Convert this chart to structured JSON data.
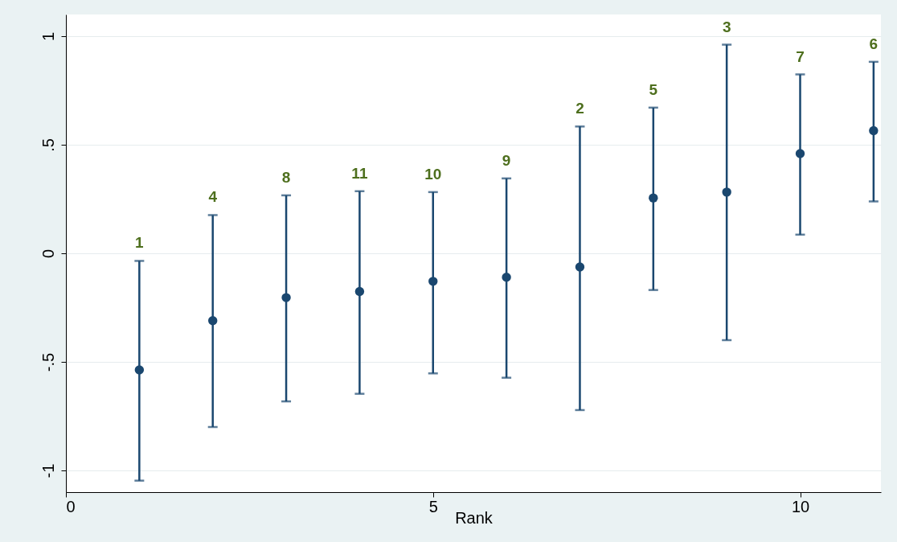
{
  "chart_data": {
    "type": "scatter",
    "xlabel": "Rank",
    "x": [
      1,
      2,
      3,
      4,
      5,
      6,
      7,
      8,
      9,
      10,
      11
    ],
    "series": [
      {
        "color": "#1a476f",
        "values": [
          -0.537,
          -0.31,
          -0.204,
          -0.176,
          -0.129,
          -0.11,
          -0.063,
          0.255,
          0.282,
          0.459,
          0.565
        ],
        "errors": [
          [
            -1.047,
            -0.035
          ],
          [
            -0.8,
            0.176
          ],
          [
            -0.682,
            0.267
          ],
          [
            -0.647,
            0.286
          ],
          [
            -0.553,
            0.282
          ],
          [
            -0.573,
            0.345
          ],
          [
            -0.722,
            0.584
          ],
          [
            -0.169,
            0.671
          ],
          [
            -0.4,
            0.961
          ],
          [
            0.086,
            0.824
          ],
          [
            0.239,
            0.882
          ]
        ]
      }
    ],
    "annotations": [
      {
        "text": "1",
        "x": 1,
        "y": -0.035
      },
      {
        "text": "4",
        "x": 2,
        "y": 0.176
      },
      {
        "text": "8",
        "x": 3,
        "y": 0.267
      },
      {
        "text": "11",
        "x": 4,
        "y": 0.286
      },
      {
        "text": "10",
        "x": 5,
        "y": 0.282
      },
      {
        "text": "9",
        "x": 6,
        "y": 0.345
      },
      {
        "text": "2",
        "x": 7,
        "y": 0.584
      },
      {
        "text": "5",
        "x": 8,
        "y": 0.671
      },
      {
        "text": "3",
        "x": 9,
        "y": 0.961
      },
      {
        "text": "7",
        "x": 10,
        "y": 0.824
      },
      {
        "text": "6",
        "x": 11,
        "y": 0.882
      }
    ],
    "xlim": [
      0,
      11.1
    ],
    "xticks": [
      0,
      5,
      10
    ],
    "ylim": [
      -1.1,
      1.1
    ],
    "yticks": [
      {
        "value": -1,
        "label": "-1"
      },
      {
        "value": -0.5,
        "label": "-.5"
      },
      0,
      {
        "value": 0.5,
        "label": ".5"
      },
      1
    ],
    "grid": "y",
    "marker": "circle"
  }
}
